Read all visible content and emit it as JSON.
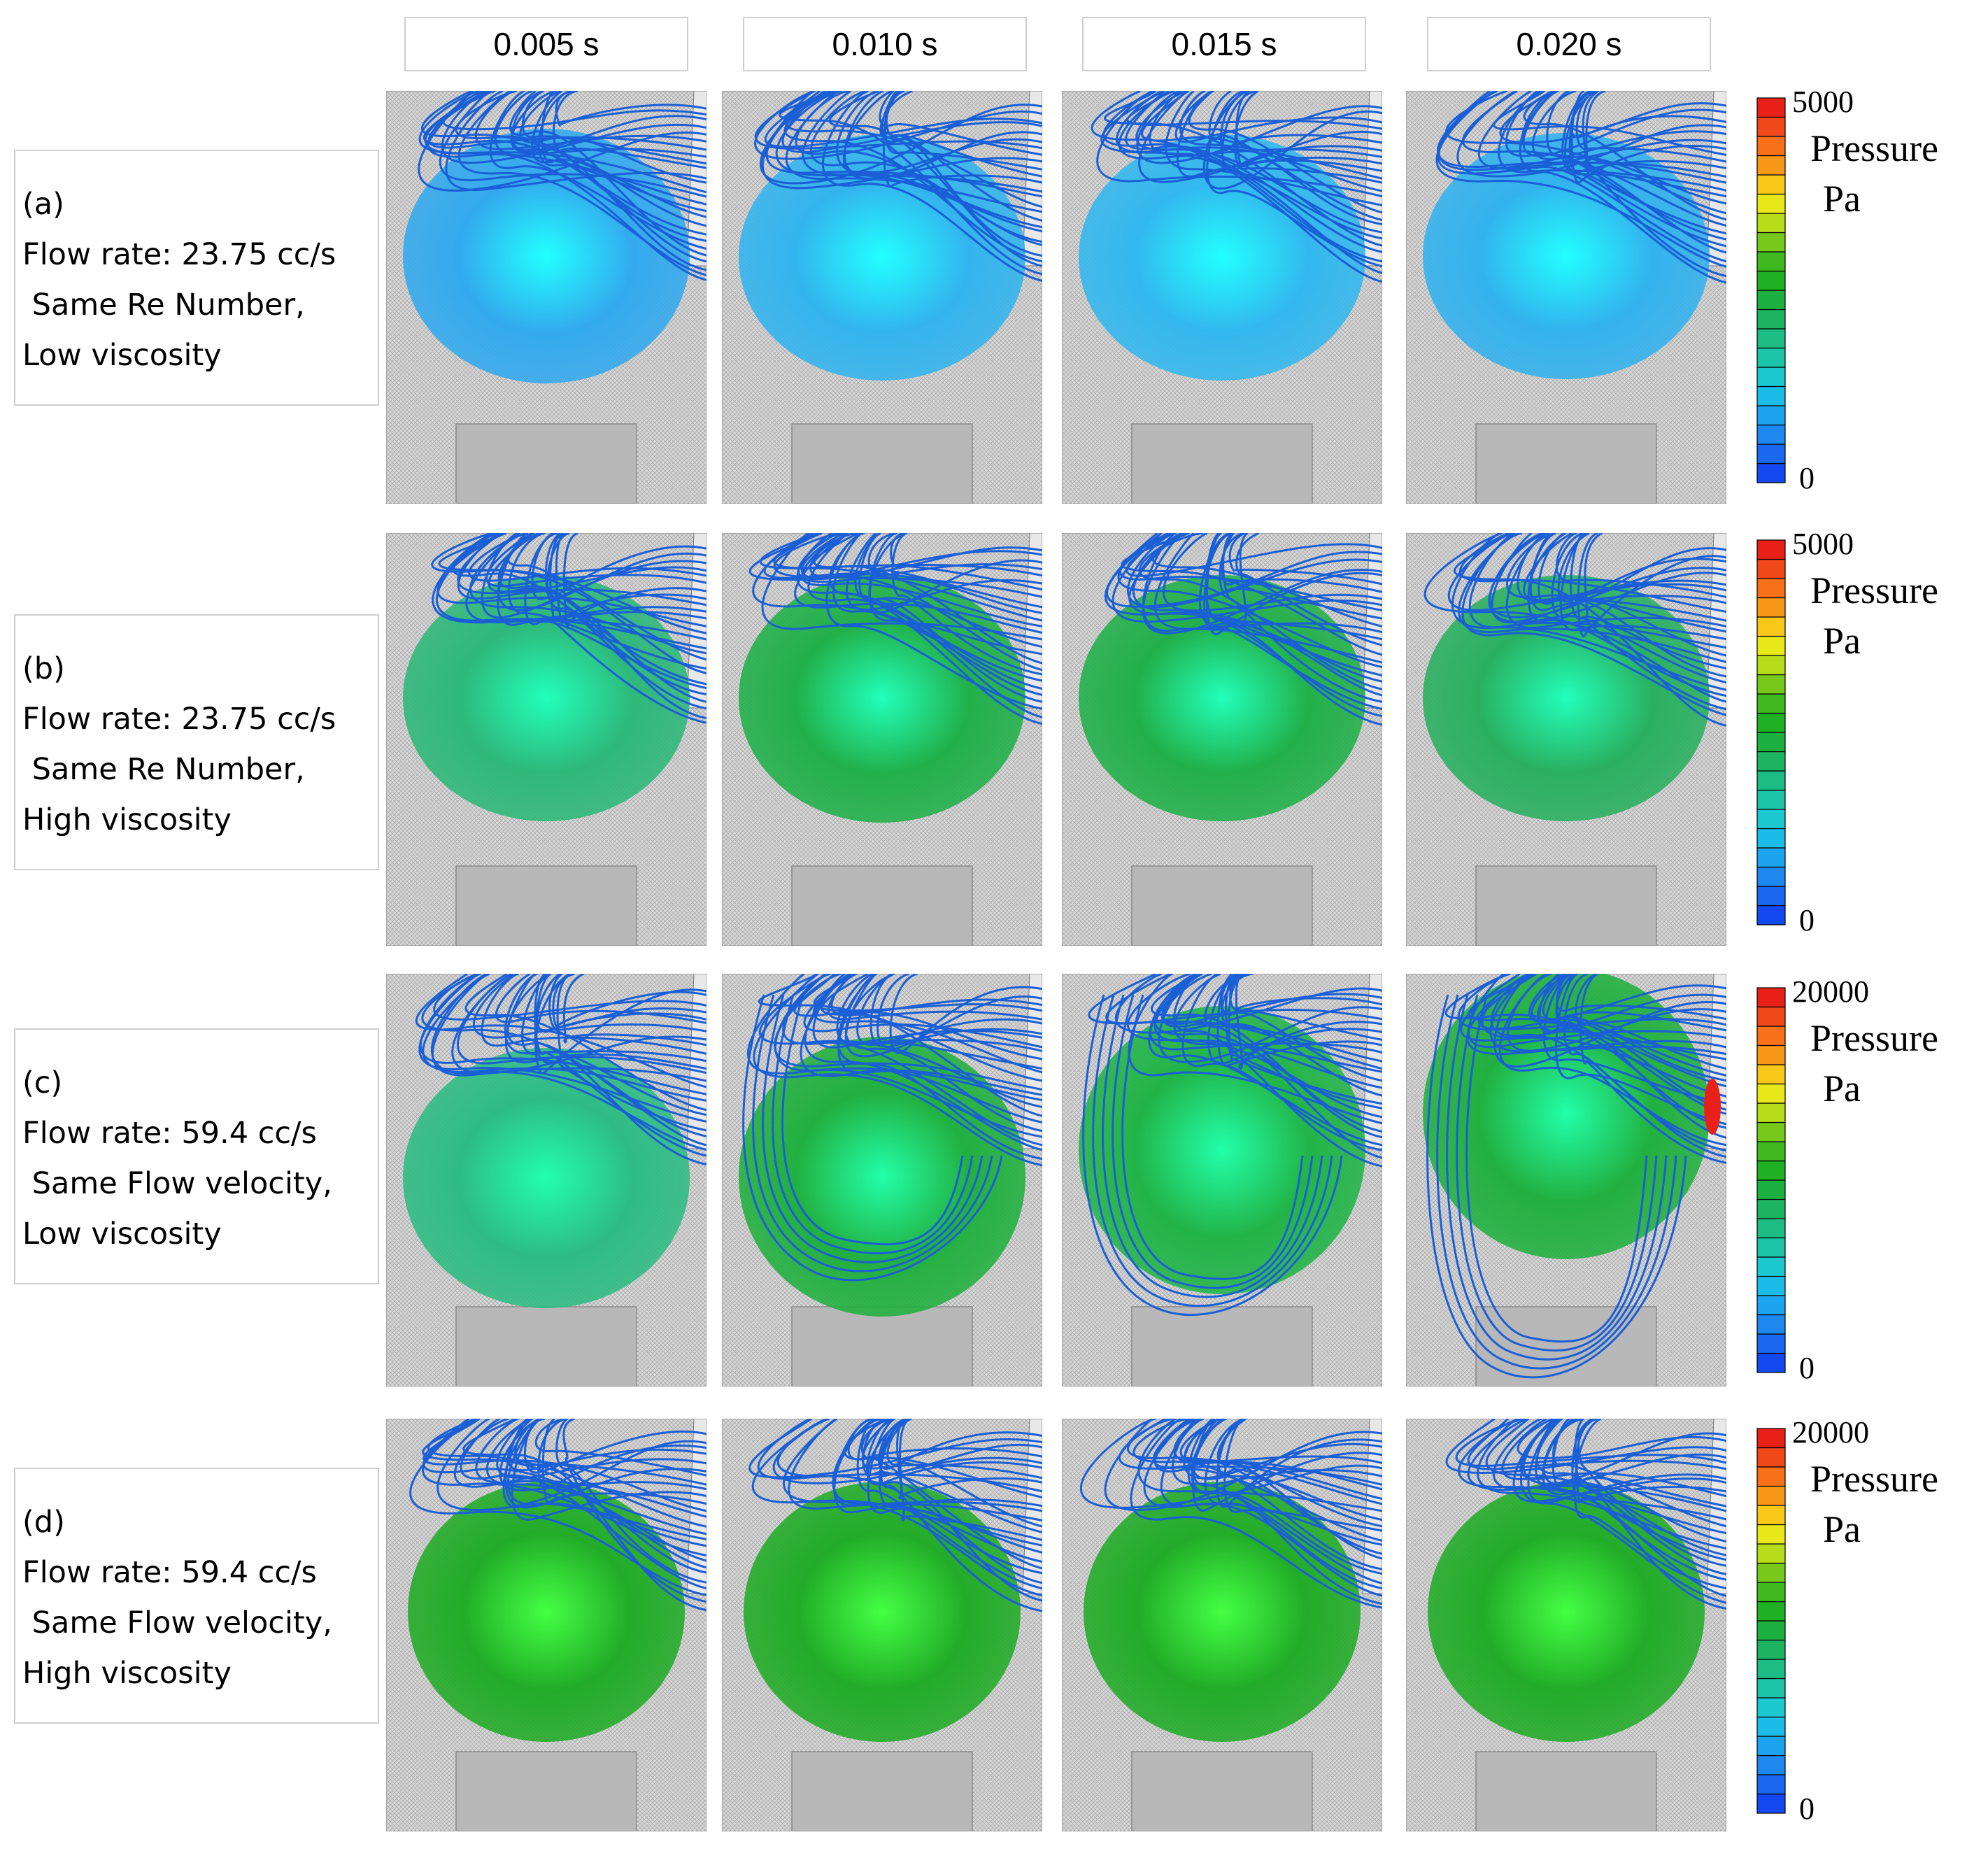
{
  "time_labels": [
    "0.005 s",
    "0.010 s",
    "0.015 s",
    "0.020 s"
  ],
  "rows": [
    {
      "id": "a",
      "label_lines": [
        "(a)",
        "Flow rate: 23.75 cc/s",
        " Same Re Number,",
        "Low viscosity"
      ],
      "colorbar": {
        "max": "5000",
        "min": "0",
        "title": "Pressure",
        "unit": "Pa"
      },
      "sphere_colors": [
        "#33aaee",
        "#33b4ee",
        "#33b8ee",
        "#33b2ee"
      ],
      "sphere_highlight": "#22ffff",
      "streamline_color": "#1a5fd6"
    },
    {
      "id": "b",
      "label_lines": [
        "(b)",
        "Flow rate: 23.75 cc/s",
        " Same Re Number,",
        "High viscosity"
      ],
      "colorbar": {
        "max": "5000",
        "min": "0",
        "title": "Pressure",
        "unit": "Pa"
      },
      "sphere_colors": [
        "#2eb87a",
        "#22b04a",
        "#22b04a",
        "#2ab060"
      ],
      "sphere_highlight": "#22ffbb",
      "streamline_color": "#1a5fd6"
    },
    {
      "id": "c",
      "label_lines": [
        "(c)",
        "Flow rate: 59.4 cc/s",
        " Same Flow velocity,",
        "Low viscosity"
      ],
      "colorbar": {
        "max": "20000",
        "min": "0",
        "title": "Pressure",
        "unit": "Pa"
      },
      "sphere_colors": [
        "#2ebc84",
        "#22b040",
        "#22b448",
        "#22b040"
      ],
      "sphere_highlight": "#22ffaa",
      "streamline_color": "#1a5fd6"
    },
    {
      "id": "d",
      "label_lines": [
        "(d)",
        "Flow rate: 59.4 cc/s",
        " Same Flow velocity,",
        "High viscosity"
      ],
      "colorbar": {
        "max": "20000",
        "min": "0",
        "title": "Pressure",
        "unit": "Pa"
      },
      "sphere_colors": [
        "#22ac28",
        "#22ac28",
        "#22ac28",
        "#22ac28"
      ],
      "sphere_highlight": "#44ff44",
      "streamline_color": "#1a5fd6"
    }
  ],
  "colormap": [
    "#1448f0",
    "#1a68f0",
    "#1c88f0",
    "#1ca4f0",
    "#1cbce8",
    "#1cc8d0",
    "#1cc4a8",
    "#1cbc84",
    "#1cb460",
    "#1cb040",
    "#20b024",
    "#40b820",
    "#78c81c",
    "#b8dc18",
    "#e8e818",
    "#f8c818",
    "#f89818",
    "#f87018",
    "#f04818",
    "#e82018"
  ]
}
